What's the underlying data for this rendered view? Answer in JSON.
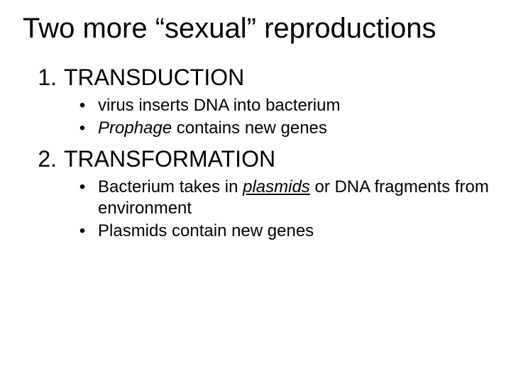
{
  "title": "Two more “sexual” reproductions",
  "items": [
    {
      "marker": "1.",
      "label": "TRANSDUCTION",
      "subs": [
        {
          "marker": "•",
          "pre": "virus inserts DNA into bacterium"
        },
        {
          "marker": "•",
          "italic1": "Prophage",
          "post1": " contains new genes"
        }
      ]
    },
    {
      "marker": "2.",
      "label": "TRANSFORMATION",
      "subs": [
        {
          "marker": "•",
          "pre": "Bacterium takes in ",
          "iu": "plasmids",
          "post": " or DNA fragments from environment"
        },
        {
          "marker": "•",
          "pre": "Plasmids contain new genes"
        }
      ]
    }
  ]
}
